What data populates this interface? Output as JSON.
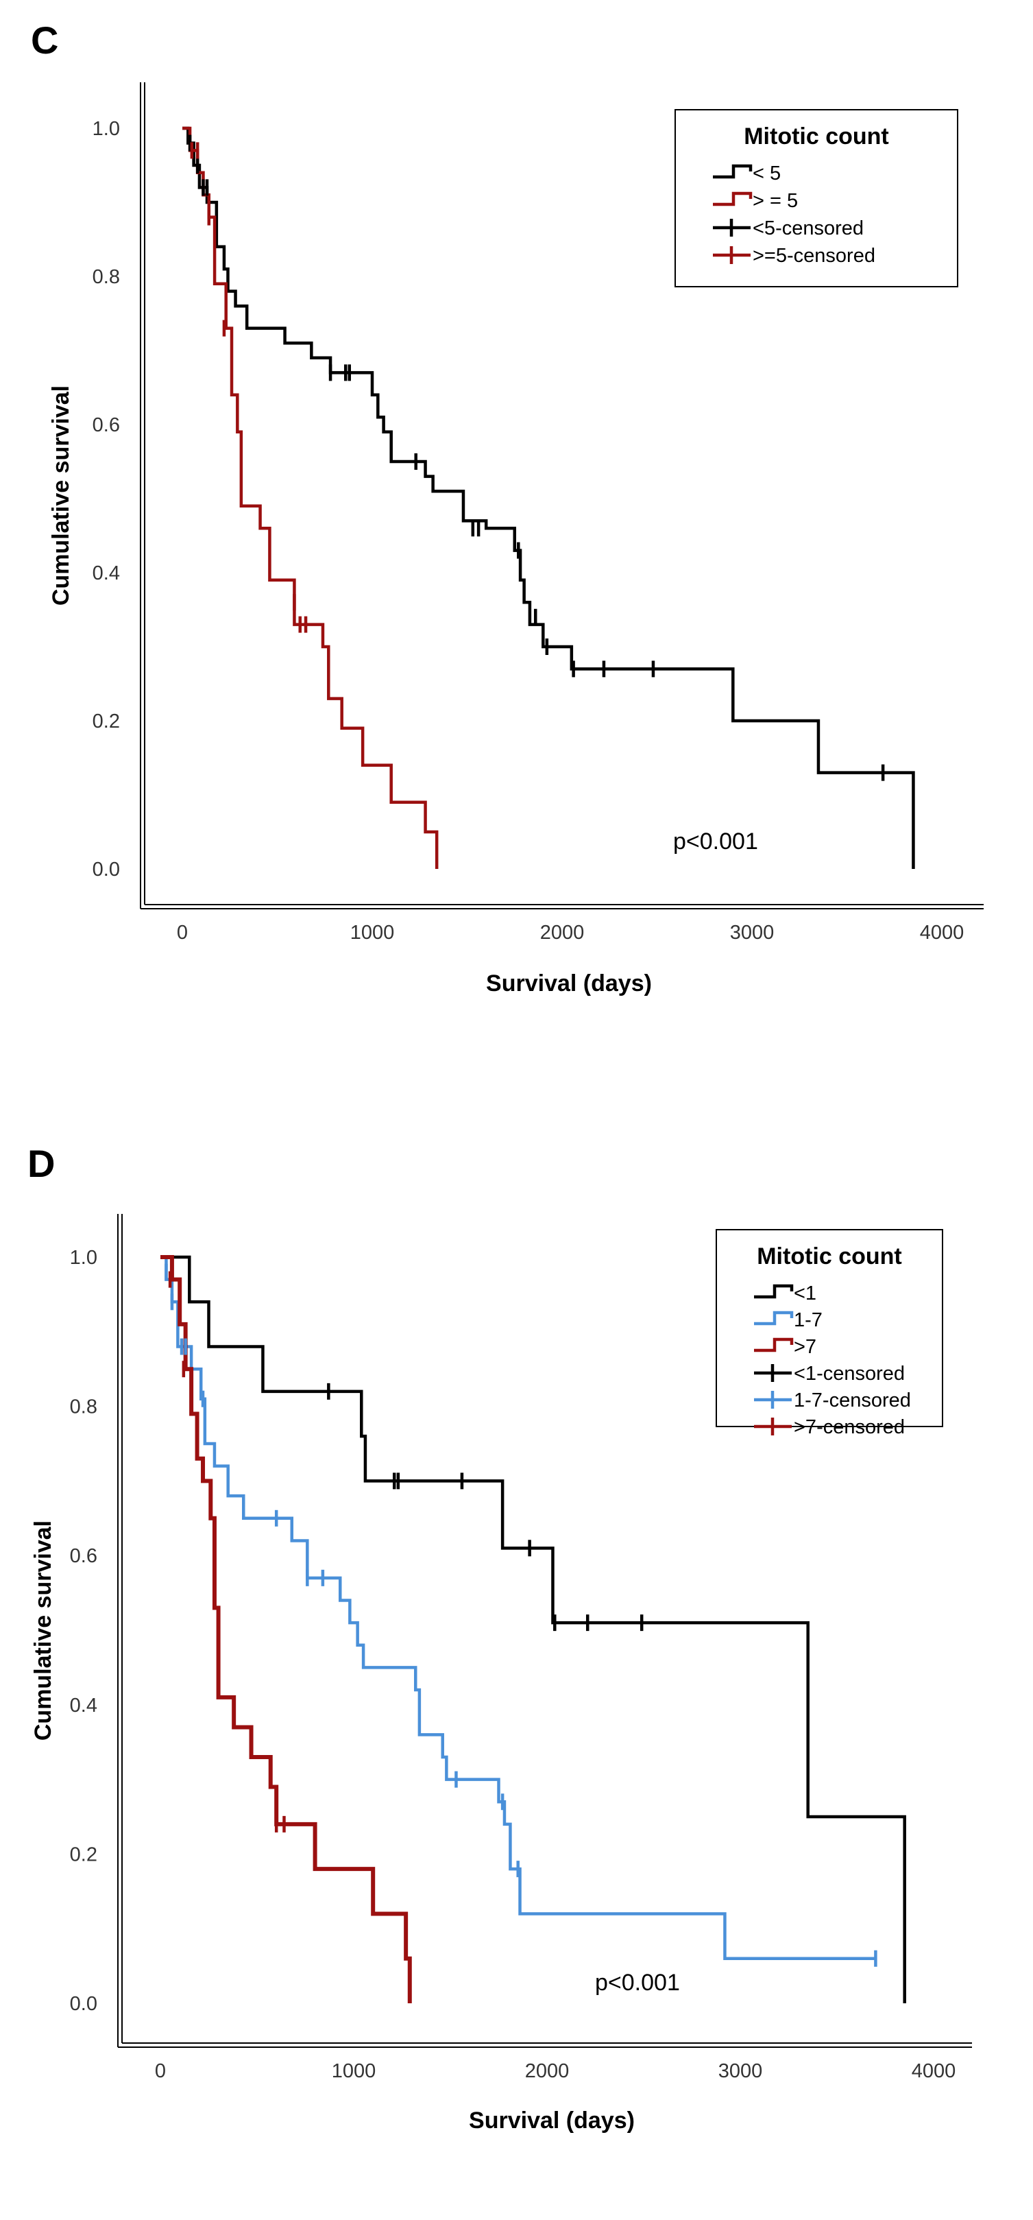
{
  "chart_data": [
    {
      "panel_label": "C",
      "type": "line",
      "step": true,
      "xlabel": "Survival (days)",
      "ylabel": "Cumulative survival",
      "xlim": [
        -230,
        4200
      ],
      "ylim": [
        -0.05,
        1.06
      ],
      "xticks": [
        0,
        1000,
        2000,
        3000,
        4000
      ],
      "yticks": [
        0.0,
        0.2,
        0.4,
        0.6,
        0.8,
        1.0
      ],
      "ytick_labels": [
        "0.0",
        "0.2",
        "0.4",
        "0.6",
        "0.8",
        "1.0"
      ],
      "grid": false,
      "legend": {
        "title": "Mitotic count",
        "placement": "top-right",
        "entries": [
          "< 5",
          "> = 5",
          "<5-censored",
          ">=5-censored"
        ]
      },
      "annotation": "p<0.001",
      "series": [
        {
          "name": "< 5",
          "color": "#000000",
          "x": [
            0,
            30,
            60,
            90,
            130,
            180,
            220,
            240,
            280,
            340,
            540,
            680,
            780,
            880,
            960,
            1000,
            1030,
            1060,
            1100,
            1200,
            1280,
            1320,
            1400,
            1480,
            1600,
            1750,
            1780,
            1800,
            1830,
            1900,
            1950,
            2050,
            2900,
            3350,
            3850
          ],
          "y": [
            1.0,
            0.98,
            0.95,
            0.92,
            0.9,
            0.84,
            0.81,
            0.78,
            0.76,
            0.73,
            0.71,
            0.69,
            0.67,
            0.67,
            0.67,
            0.64,
            0.61,
            0.59,
            0.55,
            0.55,
            0.53,
            0.51,
            0.51,
            0.47,
            0.46,
            0.43,
            0.39,
            0.36,
            0.33,
            0.3,
            0.3,
            0.27,
            0.2,
            0.13,
            0.0
          ]
        },
        {
          "name": "> = 5",
          "color": "#9b1010",
          "x": [
            0,
            40,
            80,
            110,
            140,
            170,
            230,
            260,
            290,
            310,
            410,
            460,
            590,
            740,
            770,
            840,
            950,
            1100,
            1280,
            1340
          ],
          "y": [
            1.0,
            0.97,
            0.94,
            0.91,
            0.88,
            0.79,
            0.73,
            0.64,
            0.59,
            0.49,
            0.46,
            0.39,
            0.33,
            0.3,
            0.23,
            0.19,
            0.14,
            0.09,
            0.05,
            0.0
          ]
        }
      ],
      "censored": [
        {
          "name": "<5-censored",
          "color": "#000000",
          "x": [
            40,
            80,
            110,
            130,
            780,
            860,
            880,
            1230,
            1530,
            1560,
            1770,
            1860,
            1920,
            2060,
            2220,
            2480,
            3690
          ],
          "y": [
            0.98,
            0.95,
            0.92,
            0.92,
            0.67,
            0.67,
            0.67,
            0.55,
            0.46,
            0.46,
            0.43,
            0.34,
            0.3,
            0.27,
            0.27,
            0.27,
            0.13
          ]
        },
        {
          "name": ">=5-censored",
          "color": "#9b1010",
          "x": [
            50,
            80,
            140,
            220,
            590,
            620,
            650
          ],
          "y": [
            0.97,
            0.97,
            0.88,
            0.73,
            0.36,
            0.33,
            0.33
          ]
        }
      ]
    },
    {
      "panel_label": "D",
      "type": "line",
      "step": true,
      "xlabel": "Survival (days)",
      "ylabel": "Cumulative survival",
      "xlim": [
        -230,
        4200
      ],
      "ylim": [
        -0.05,
        1.06
      ],
      "xticks": [
        0,
        1000,
        2000,
        3000,
        4000
      ],
      "yticks": [
        0.0,
        0.2,
        0.4,
        0.6,
        0.8,
        1.0
      ],
      "ytick_labels": [
        "0.0",
        "0.2",
        "0.4",
        "0.6",
        "0.8",
        "1.0"
      ],
      "grid": false,
      "legend": {
        "title": "Mitotic count",
        "placement": "top-right",
        "entries": [
          "<1",
          "1-7",
          ">7",
          "<1-censored",
          "1-7-censored",
          ">7-censored"
        ]
      },
      "annotation": "p<0.001",
      "series": [
        {
          "name": "<1",
          "color": "#000000",
          "x": [
            0,
            150,
            250,
            530,
            1040,
            1060,
            1770,
            2030,
            3350,
            3850
          ],
          "y": [
            1.0,
            0.94,
            0.88,
            0.82,
            0.76,
            0.7,
            0.61,
            0.51,
            0.25,
            0.0
          ]
        },
        {
          "name": "1-7",
          "color": "#4a90d9",
          "x": [
            0,
            30,
            60,
            90,
            160,
            210,
            230,
            280,
            350,
            430,
            600,
            680,
            760,
            930,
            980,
            1020,
            1050,
            1320,
            1340,
            1460,
            1480,
            1750,
            1780,
            1810,
            1860,
            2920,
            3700
          ],
          "y": [
            1.0,
            0.97,
            0.94,
            0.88,
            0.85,
            0.81,
            0.75,
            0.72,
            0.68,
            0.65,
            0.65,
            0.62,
            0.57,
            0.54,
            0.51,
            0.48,
            0.45,
            0.42,
            0.36,
            0.33,
            0.3,
            0.27,
            0.24,
            0.18,
            0.12,
            0.06,
            0.06
          ]
        },
        {
          "name": ">7",
          "color": "#9b1010",
          "x": [
            0,
            60,
            100,
            130,
            160,
            190,
            220,
            260,
            280,
            300,
            380,
            470,
            570,
            600,
            800,
            1100,
            1270,
            1290
          ],
          "y": [
            1.0,
            0.97,
            0.91,
            0.85,
            0.79,
            0.73,
            0.7,
            0.65,
            0.53,
            0.41,
            0.37,
            0.33,
            0.29,
            0.24,
            0.18,
            0.12,
            0.06,
            0.0
          ]
        }
      ],
      "censored": [
        {
          "name": "<1-censored",
          "color": "#000000",
          "x": [
            870,
            1210,
            1230,
            1560,
            1910,
            2040,
            2210,
            2490
          ],
          "y": [
            0.82,
            0.7,
            0.7,
            0.7,
            0.61,
            0.51,
            0.51,
            0.51
          ]
        },
        {
          "name": "1-7-censored",
          "color": "#4a90d9",
          "x": [
            30,
            60,
            110,
            130,
            220,
            600,
            760,
            840,
            1530,
            1770,
            1850,
            3700
          ],
          "y": [
            0.98,
            0.94,
            0.88,
            0.88,
            0.81,
            0.65,
            0.57,
            0.57,
            0.3,
            0.27,
            0.18,
            0.06
          ]
        },
        {
          "name": ">7-censored",
          "color": "#9b1010",
          "x": [
            50,
            120,
            600,
            640
          ],
          "y": [
            0.97,
            0.85,
            0.24,
            0.24
          ]
        }
      ]
    }
  ]
}
